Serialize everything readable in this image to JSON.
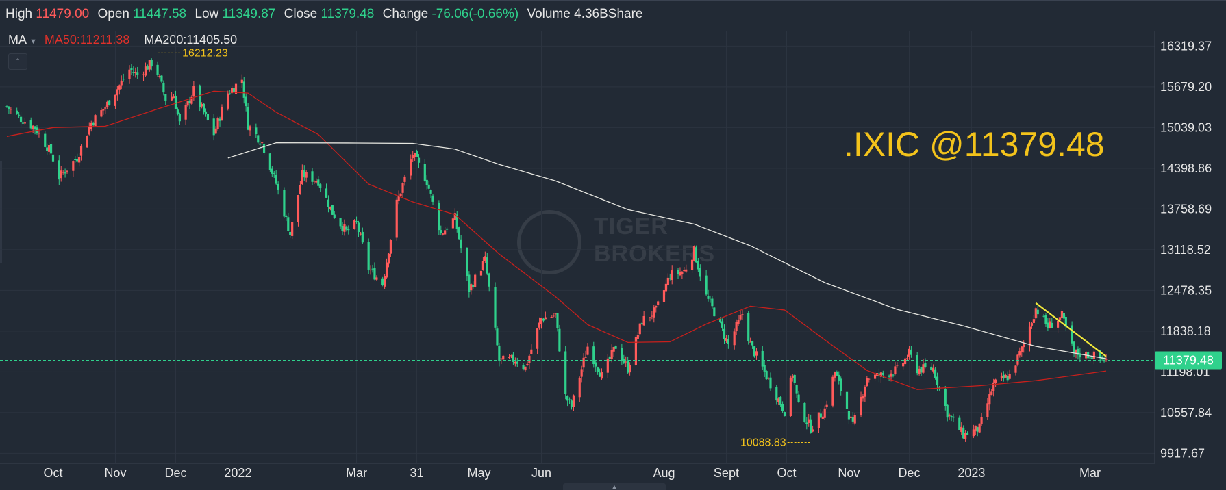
{
  "header": {
    "high_label": "High",
    "high_value": "11479.00",
    "open_label": "Open",
    "open_value": "11447.58",
    "low_label": "Low",
    "low_value": "11349.87",
    "close_label": "Close",
    "close_value": "11379.48",
    "change_label": "Change",
    "change_value": "-76.06(-0.66%)",
    "volume_label": "Volume",
    "volume_value": "4.36BShare"
  },
  "indicators": {
    "selector_label": "MA",
    "ma50_label": "MA50:11211.38",
    "ma200_label": "MA200:11405.50"
  },
  "colors": {
    "background": "#222a35",
    "grid": "#2c3440",
    "up": "#ff5a5a",
    "down": "#2fd18c",
    "ma50": "#c8201c",
    "ma200": "#e6e6e0",
    "annotation": "#f3c31b",
    "trendline": "#f2e93a",
    "price_tag": "#2fd18c"
  },
  "watermark": {
    "text_line1": "TIGER",
    "text_line2": "BROKERS"
  },
  "icons": {
    "collapse": "chevron-up-icon",
    "dropdown": "caret-down-icon",
    "bottom_handle": "chevron-up-icon"
  },
  "chart_data": {
    "type": "candlestick",
    "symbol_label": ".IXIC @11379.48",
    "current_price_label": "11379.48",
    "current_price": 11379.48,
    "high_annotation": {
      "label": "16212.23",
      "value": 16212.23,
      "date": "2021-11-22"
    },
    "low_annotation": {
      "label": "10088.83",
      "value": 10088.83,
      "date": "2022-10-13"
    },
    "ylim": [
      9760,
      16560
    ],
    "y_ticks": [
      {
        "label": "16319.37",
        "value": 16319.37
      },
      {
        "label": "15679.20",
        "value": 15679.2
      },
      {
        "label": "15039.03",
        "value": 15039.03
      },
      {
        "label": "14398.86",
        "value": 14398.86
      },
      {
        "label": "13758.69",
        "value": 13758.69
      },
      {
        "label": "13118.52",
        "value": 13118.52
      },
      {
        "label": "12478.35",
        "value": 12478.35
      },
      {
        "label": "11838.18",
        "value": 11838.18
      },
      {
        "label": "11198.01",
        "value": 11198.01
      },
      {
        "label": "10557.84",
        "value": 10557.84
      },
      {
        "label": "9917.67",
        "value": 9917.67
      }
    ],
    "x_ticks": [
      {
        "label": "Oct",
        "date": "2021-10-01"
      },
      {
        "label": "Nov",
        "date": "2021-11-01"
      },
      {
        "label": "Dec",
        "date": "2021-12-01"
      },
      {
        "label": "2022",
        "date": "2022-01-01"
      },
      {
        "label": "Mar",
        "date": "2022-03-01"
      },
      {
        "label": "31",
        "date": "2022-03-31"
      },
      {
        "label": "May",
        "date": "2022-05-01"
      },
      {
        "label": "Jun",
        "date": "2022-06-01"
      },
      {
        "label": "Aug",
        "date": "2022-08-01"
      },
      {
        "label": "Sept",
        "date": "2022-09-01"
      },
      {
        "label": "Oct",
        "date": "2022-10-01"
      },
      {
        "label": "Nov",
        "date": "2022-11-01"
      },
      {
        "label": "Dec",
        "date": "2022-12-01"
      },
      {
        "label": "2023",
        "date": "2023-01-01"
      },
      {
        "label": "Mar",
        "date": "2023-03-01"
      }
    ],
    "x_range": [
      "2021-09-08",
      "2023-03-09"
    ],
    "close_path": [
      [
        "2021-09-08",
        15370
      ],
      [
        "2021-09-15",
        15180
      ],
      [
        "2021-09-22",
        15040
      ],
      [
        "2021-09-30",
        14640
      ],
      [
        "2021-10-04",
        14260
      ],
      [
        "2021-10-13",
        14570
      ],
      [
        "2021-10-20",
        15120
      ],
      [
        "2021-10-27",
        15360
      ],
      [
        "2021-11-03",
        15700
      ],
      [
        "2021-11-08",
        15950
      ],
      [
        "2021-11-12",
        15870
      ],
      [
        "2021-11-19",
        16050
      ],
      [
        "2021-11-22",
        15900
      ],
      [
        "2021-11-26",
        15490
      ],
      [
        "2021-11-30",
        15540
      ],
      [
        "2021-12-03",
        15100
      ],
      [
        "2021-12-10",
        15630
      ],
      [
        "2021-12-13",
        15400
      ],
      [
        "2021-12-20",
        14940
      ],
      [
        "2021-12-27",
        15580
      ],
      [
        "2022-01-03",
        15800
      ],
      [
        "2022-01-06",
        15080
      ],
      [
        "2022-01-13",
        14800
      ],
      [
        "2022-01-20",
        14160
      ],
      [
        "2022-01-27",
        13360
      ],
      [
        "2022-02-02",
        14300
      ],
      [
        "2022-02-10",
        14200
      ],
      [
        "2022-02-17",
        13700
      ],
      [
        "2022-02-24",
        13400
      ],
      [
        "2022-03-01",
        13530
      ],
      [
        "2022-03-07",
        12830
      ],
      [
        "2022-03-14",
        12580
      ],
      [
        "2022-03-21",
        13850
      ],
      [
        "2022-03-29",
        14620
      ],
      [
        "2022-04-05",
        14200
      ],
      [
        "2022-04-12",
        13370
      ],
      [
        "2022-04-19",
        13620
      ],
      [
        "2022-04-26",
        12490
      ],
      [
        "2022-05-04",
        12960
      ],
      [
        "2022-05-11",
        11370
      ],
      [
        "2022-05-19",
        11390
      ],
      [
        "2022-05-24",
        11260
      ],
      [
        "2022-06-01",
        12040
      ],
      [
        "2022-06-08",
        12090
      ],
      [
        "2022-06-13",
        10810
      ],
      [
        "2022-06-16",
        10650
      ],
      [
        "2022-06-24",
        11600
      ],
      [
        "2022-07-01",
        11130
      ],
      [
        "2022-07-08",
        11600
      ],
      [
        "2022-07-14",
        11250
      ],
      [
        "2022-07-21",
        12000
      ],
      [
        "2022-07-28",
        12160
      ],
      [
        "2022-08-04",
        12720
      ],
      [
        "2022-08-11",
        12780
      ],
      [
        "2022-08-16",
        13100
      ],
      [
        "2022-08-22",
        12380
      ],
      [
        "2022-08-26",
        12140
      ],
      [
        "2022-09-02",
        11630
      ],
      [
        "2022-09-09",
        12110
      ],
      [
        "2022-09-13",
        11630
      ],
      [
        "2022-09-22",
        11070
      ],
      [
        "2022-09-30",
        10580
      ],
      [
        "2022-10-04",
        11180
      ],
      [
        "2022-10-07",
        10650
      ],
      [
        "2022-10-13",
        10320
      ],
      [
        "2022-10-20",
        10610
      ],
      [
        "2022-10-25",
        11200
      ],
      [
        "2022-11-03",
        10340
      ],
      [
        "2022-11-10",
        11110
      ],
      [
        "2022-11-17",
        11140
      ],
      [
        "2022-11-25",
        11230
      ],
      [
        "2022-12-01",
        11480
      ],
      [
        "2022-12-05",
        11240
      ],
      [
        "2022-12-13",
        11250
      ],
      [
        "2022-12-20",
        10550
      ],
      [
        "2022-12-28",
        10210
      ],
      [
        "2023-01-05",
        10310
      ],
      [
        "2023-01-12",
        11000
      ],
      [
        "2023-01-20",
        11140
      ],
      [
        "2023-01-27",
        11620
      ],
      [
        "2023-02-02",
        12200
      ],
      [
        "2023-02-08",
        11910
      ],
      [
        "2023-02-15",
        12070
      ],
      [
        "2023-02-21",
        11490
      ],
      [
        "2023-02-27",
        11470
      ],
      [
        "2023-03-02",
        11460
      ],
      [
        "2023-03-09",
        11379.48
      ]
    ],
    "ma50": [
      [
        "2021-09-08",
        14900
      ],
      [
        "2021-10-01",
        15040
      ],
      [
        "2021-10-27",
        15060
      ],
      [
        "2021-11-22",
        15330
      ],
      [
        "2021-12-20",
        15610
      ],
      [
        "2022-01-06",
        15580
      ],
      [
        "2022-01-20",
        15280
      ],
      [
        "2022-02-10",
        14930
      ],
      [
        "2022-03-07",
        14150
      ],
      [
        "2022-03-29",
        13870
      ],
      [
        "2022-04-19",
        13670
      ],
      [
        "2022-05-11",
        13050
      ],
      [
        "2022-06-08",
        12380
      ],
      [
        "2022-06-24",
        11940
      ],
      [
        "2022-07-14",
        11660
      ],
      [
        "2022-08-04",
        11670
      ],
      [
        "2022-08-22",
        11950
      ],
      [
        "2022-09-13",
        12230
      ],
      [
        "2022-09-30",
        12170
      ],
      [
        "2022-10-20",
        11700
      ],
      [
        "2022-11-10",
        11220
      ],
      [
        "2022-12-05",
        10920
      ],
      [
        "2023-01-05",
        10980
      ],
      [
        "2023-02-02",
        11060
      ],
      [
        "2023-03-09",
        11211.38
      ]
    ],
    "ma200": [
      [
        "2021-12-27",
        14560
      ],
      [
        "2022-01-20",
        14800
      ],
      [
        "2022-03-01",
        14795
      ],
      [
        "2022-03-29",
        14790
      ],
      [
        "2022-04-19",
        14700
      ],
      [
        "2022-05-11",
        14460
      ],
      [
        "2022-06-08",
        14200
      ],
      [
        "2022-07-14",
        13750
      ],
      [
        "2022-08-16",
        13520
      ],
      [
        "2022-09-13",
        13180
      ],
      [
        "2022-10-20",
        12600
      ],
      [
        "2022-11-25",
        12180
      ],
      [
        "2022-12-28",
        11920
      ],
      [
        "2023-02-02",
        11600
      ],
      [
        "2023-03-09",
        11405.5
      ]
    ],
    "trendline": [
      [
        "2023-02-02",
        12280
      ],
      [
        "2023-03-09",
        11440
      ]
    ]
  }
}
